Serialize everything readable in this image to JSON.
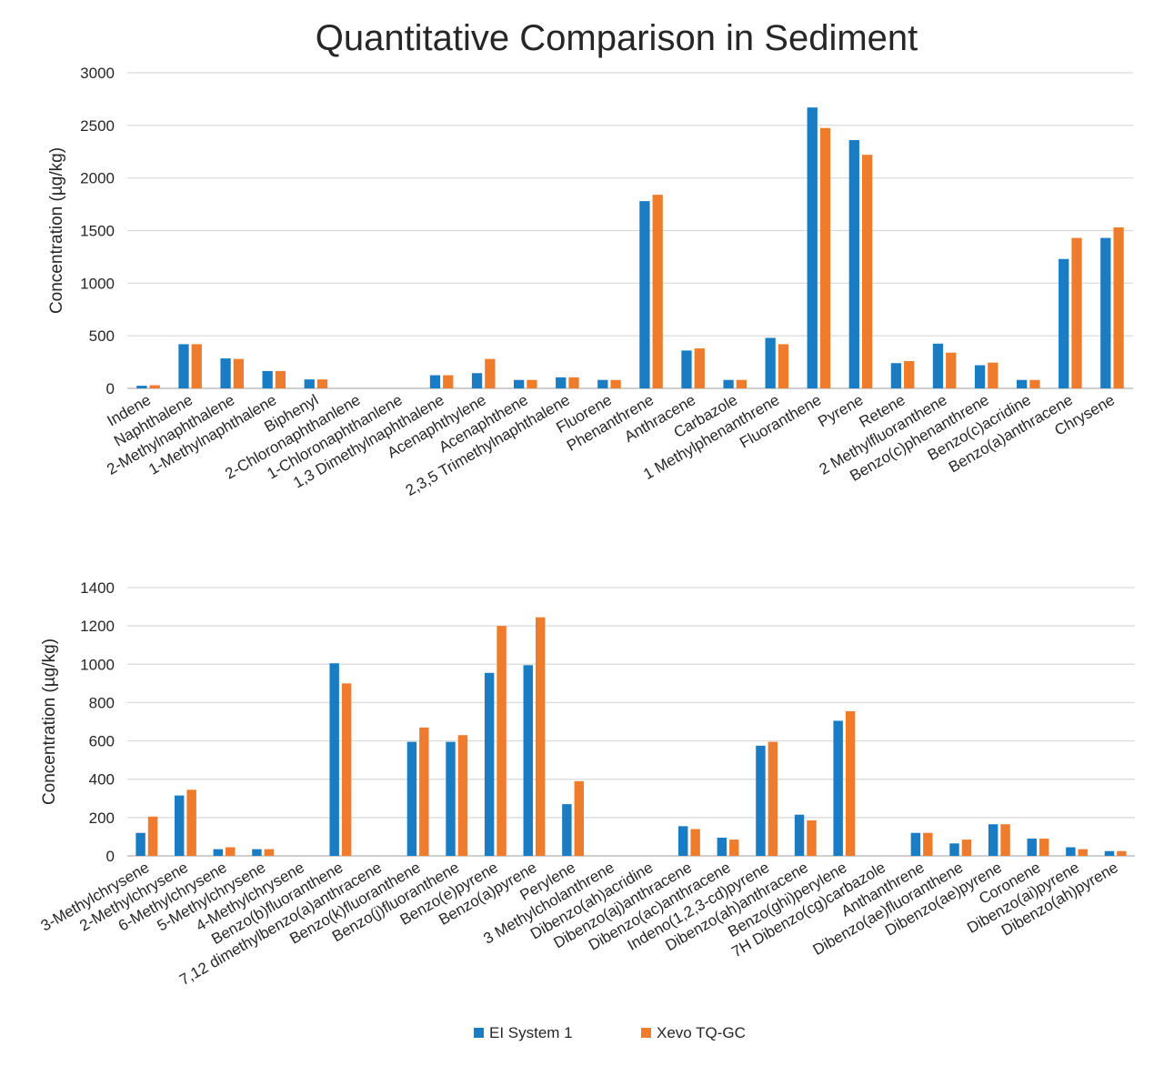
{
  "chart_data": [
    {
      "type": "bar",
      "title": "Quantitative Comparison in Sediment",
      "ylabel": "Concentration (µg/kg)",
      "xlabel": "",
      "ylim": [
        0,
        3000
      ],
      "yticks": [
        0,
        500,
        1000,
        1500,
        2000,
        2500,
        3000
      ],
      "grid": true,
      "categories": [
        "Indene",
        "Naphthalene",
        "2-Methylnaphthalene",
        "1-Methylnaphthalene",
        "Biphenyl",
        "2-Chloronaphthanlene",
        "1-Chloronaphthanlene",
        "1,3 Dimethylnaphthalene",
        "Acenaphthylene",
        "Acenaphthene",
        "2,3,5 Trimethylnaphthalene",
        "Fluorene",
        "Phenanthrene",
        "Anthracene",
        "Carbazole",
        "1 Methylphenanthrene",
        "Fluoranthene",
        "Pyrene",
        "Retene",
        "2 Methylfluoranthene",
        "Benzo(c)phenanthrene",
        "Benzo(c)acridine",
        "Benzo(a)anthracene",
        "Chrysene"
      ],
      "series": [
        {
          "name": "EI System 1",
          "values": [
            25,
            420,
            285,
            165,
            85,
            0,
            0,
            125,
            145,
            80,
            105,
            80,
            1780,
            360,
            80,
            480,
            2670,
            2360,
            240,
            425,
            220,
            80,
            1230,
            1430
          ]
        },
        {
          "name": "Xevo TQ-GC",
          "values": [
            30,
            420,
            280,
            165,
            85,
            0,
            0,
            125,
            280,
            80,
            105,
            80,
            1840,
            380,
            80,
            420,
            2475,
            2220,
            260,
            340,
            245,
            80,
            1430,
            1530
          ]
        }
      ]
    },
    {
      "type": "bar",
      "title": "",
      "ylabel": "Concentration (µg/kg)",
      "xlabel": "",
      "ylim": [
        0,
        1400
      ],
      "yticks": [
        0,
        200,
        400,
        600,
        800,
        1000,
        1200,
        1400
      ],
      "grid": true,
      "categories": [
        "3-Methylchrysene",
        "2-Methylchrysene",
        "6-Methylchrysene",
        "5-Methylchrysene",
        "4-Methylchrysene",
        "Benzo(b)fluoranthene",
        "7,12 dimethylbenzo(a)anthracene",
        "Benzo(k)fluoranthene",
        "Benzo(j)fluoranthene",
        "Benzo(e)pyrene",
        "Benzo(a)pyrene",
        "Perylene",
        "3 Methylcholanthrene",
        "Dibenzo(ah)acridine",
        "Dibenzo(aj)anthracene",
        "Dibenzo(ac)anthracene",
        "Indeno(1,2,3-cd)pyrene",
        "Dibenzo(ah)anthracene",
        "Benzo(ghi)perylene",
        "7H Dibenzo(cg)carbazole",
        "Anthanthrene",
        "Dibenzo(ae)fluoranthene",
        "Dibenzo(ae)pyrene",
        "Coronene",
        "Dibenzo(ai)pyrene",
        "Dibenzo(ah)pyrene"
      ],
      "series": [
        {
          "name": "EI System 1",
          "values": [
            120,
            315,
            35,
            35,
            0,
            1005,
            0,
            595,
            595,
            955,
            995,
            270,
            0,
            0,
            155,
            95,
            575,
            215,
            705,
            0,
            120,
            65,
            165,
            90,
            45,
            25
          ]
        },
        {
          "name": "Xevo TQ-GC",
          "values": [
            205,
            345,
            45,
            35,
            0,
            900,
            0,
            670,
            630,
            1200,
            1245,
            390,
            0,
            0,
            140,
            85,
            595,
            185,
            755,
            0,
            120,
            85,
            165,
            90,
            35,
            25
          ]
        }
      ]
    }
  ],
  "legend": {
    "position": "bottom",
    "entries": [
      {
        "label": "EI System 1",
        "color": "#1a7dc4"
      },
      {
        "label": "Xevo TQ-GC",
        "color": "#ef7b2d"
      }
    ]
  },
  "colors": {
    "series1": "#1a7dc4",
    "series2": "#ef7b2d",
    "grid": "#d9d9d9",
    "text": "#262626"
  }
}
